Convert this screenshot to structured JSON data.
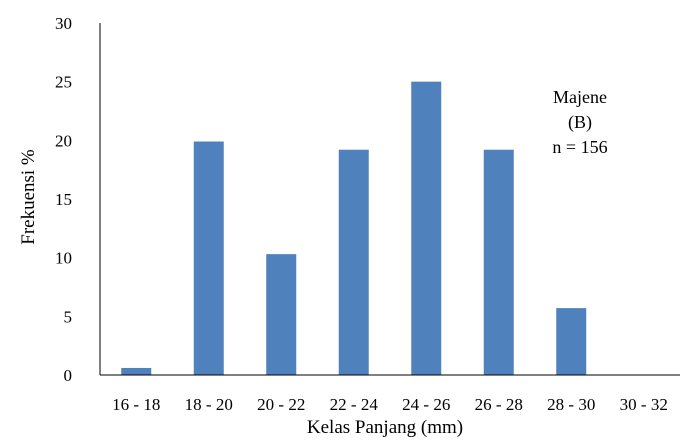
{
  "chart_data": {
    "type": "bar",
    "title": "",
    "xlabel": "Kelas Panjang (mm)",
    "ylabel": "Frekuensi %",
    "categories": [
      "16 - 18",
      "18 - 20",
      "20 - 22",
      "22 - 24",
      "24 - 26",
      "26 - 28",
      "28 - 30",
      "30 - 32"
    ],
    "values": [
      0.6,
      19.9,
      10.3,
      19.2,
      25.0,
      19.2,
      5.7,
      0.0
    ],
    "ylim": [
      0,
      30
    ],
    "yticks": [
      "0",
      "5",
      "10",
      "15",
      "20",
      "25",
      "30"
    ],
    "grid": false,
    "legend": "none",
    "bar_color": "#4F81BD",
    "annotation": {
      "lines": [
        "Majene",
        "(B)",
        "n = 156"
      ]
    }
  }
}
